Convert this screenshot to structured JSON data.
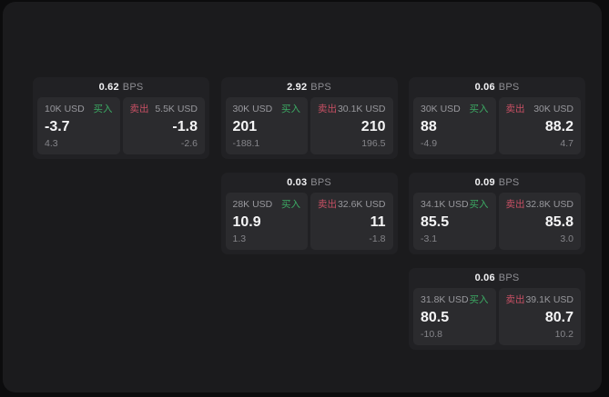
{
  "labels": {
    "bps_unit": "BPS",
    "buy": "买入",
    "sell": "卖出"
  },
  "colors": {
    "buy_green": "#3caa64",
    "sell_red": "#c85064",
    "panel_background": "#1b1b1d",
    "card_background": "#212124",
    "tile_background": "#2b2b2e"
  },
  "cards": [
    {
      "bps": "0.62",
      "col": 1,
      "row": 1,
      "buy": {
        "amount": "10K USD",
        "price": "-3.7",
        "sub": "4.3"
      },
      "sell": {
        "amount": "5.5K USD",
        "price": "-1.8",
        "sub": "-2.6"
      }
    },
    {
      "bps": "2.92",
      "col": 2,
      "row": 1,
      "buy": {
        "amount": "30K USD",
        "price": "201",
        "sub": "-188.1"
      },
      "sell": {
        "amount": "30.1K USD",
        "price": "210",
        "sub": "196.5"
      }
    },
    {
      "bps": "0.06",
      "col": 3,
      "row": 1,
      "buy": {
        "amount": "30K USD",
        "price": "88",
        "sub": "-4.9"
      },
      "sell": {
        "amount": "30K USD",
        "price": "88.2",
        "sub": "4.7"
      }
    },
    {
      "bps": "0.03",
      "col": 2,
      "row": 2,
      "buy": {
        "amount": "28K USD",
        "price": "10.9",
        "sub": "1.3"
      },
      "sell": {
        "amount": "32.6K USD",
        "price": "11",
        "sub": "-1.8"
      }
    },
    {
      "bps": "0.09",
      "col": 3,
      "row": 2,
      "buy": {
        "amount": "34.1K USD",
        "price": "85.5",
        "sub": "-3.1"
      },
      "sell": {
        "amount": "32.8K USD",
        "price": "85.8",
        "sub": "3.0"
      }
    },
    {
      "bps": "0.06",
      "col": 3,
      "row": 3,
      "buy": {
        "amount": "31.8K USD",
        "price": "80.5",
        "sub": "-10.8"
      },
      "sell": {
        "amount": "39.1K USD",
        "price": "80.7",
        "sub": "10.2"
      }
    }
  ]
}
